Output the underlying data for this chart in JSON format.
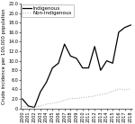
{
  "years": [
    2000,
    2001,
    2002,
    2003,
    2004,
    2005,
    2006,
    2007,
    2008,
    2009,
    2010,
    2011,
    2012,
    2013,
    2014,
    2015,
    2016,
    2017,
    2018
  ],
  "indigenous": [
    2.0,
    0.5,
    0.2,
    3.5,
    5.5,
    8.5,
    9.5,
    13.5,
    11.0,
    10.5,
    8.5,
    8.5,
    13.0,
    8.0,
    10.0,
    9.5,
    16.0,
    17.0,
    17.5
  ],
  "non_indigenous": [
    0.4,
    0.3,
    0.2,
    0.5,
    0.9,
    1.1,
    1.3,
    1.7,
    2.1,
    2.1,
    2.3,
    2.4,
    2.6,
    2.9,
    3.1,
    3.6,
    4.1,
    3.9,
    4.1
  ],
  "indigenous_color": "#000000",
  "non_indigenous_color": "#aaaaaa",
  "ylim": [
    0,
    22
  ],
  "ytick_labels": [
    "0",
    "2.0",
    "4.0",
    "6.0",
    "8.0",
    "10.0",
    "12.0",
    "14.0",
    "16.0",
    "18.0",
    "20.0",
    "22.0"
  ],
  "ytick_values": [
    0,
    2.0,
    4.0,
    6.0,
    8.0,
    10.0,
    12.0,
    14.0,
    16.0,
    18.0,
    20.0,
    22.0
  ],
  "ylabel": "Crude incidence per 100,000 population",
  "legend_indigenous": "Indigenous",
  "legend_non_indigenous": "Non-Indigenous",
  "tick_fontsize": 3.5,
  "label_fontsize": 3.8,
  "legend_fontsize": 4.0,
  "linewidth_indigenous": 0.9,
  "linewidth_non_indigenous": 0.7,
  "figure_width": 1.5,
  "figure_height": 1.38,
  "figure_dpi": 100
}
